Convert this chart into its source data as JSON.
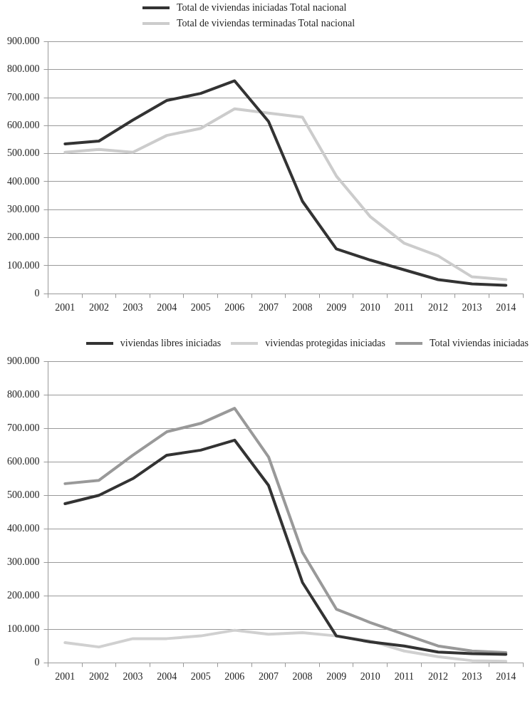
{
  "chart_data": [
    {
      "type": "line",
      "categories": [
        "2001",
        "2002",
        "2003",
        "2004",
        "2005",
        "2006",
        "2007",
        "2008",
        "2009",
        "2010",
        "2011",
        "2012",
        "2013",
        "2014"
      ],
      "series": [
        {
          "name": "Total de viviendas iniciadas Total nacional",
          "color": "#333333",
          "values": [
            535000,
            545000,
            620000,
            690000,
            715000,
            760000,
            615000,
            330000,
            160000,
            120000,
            85000,
            50000,
            35000,
            30000
          ]
        },
        {
          "name": "Total de viviendas terminadas Total nacional",
          "color": "#cccccc",
          "values": [
            505000,
            515000,
            505000,
            565000,
            590000,
            660000,
            645000,
            630000,
            420000,
            275000,
            180000,
            135000,
            60000,
            50000
          ]
        }
      ],
      "ylim": [
        0,
        900000
      ],
      "yticks": [
        {
          "value": 0,
          "label": "0"
        },
        {
          "value": 100000,
          "label": "100.000"
        },
        {
          "value": 200000,
          "label": "200.000"
        },
        {
          "value": 300000,
          "label": "300.000"
        },
        {
          "value": 400000,
          "label": "400.000"
        },
        {
          "value": 500000,
          "label": "500.000"
        },
        {
          "value": 600000,
          "label": "600.000"
        },
        {
          "value": 700000,
          "label": "700.000"
        },
        {
          "value": 800000,
          "label": "800.000"
        },
        {
          "value": 900000,
          "label": "900.000"
        }
      ],
      "grid": "y",
      "legend": "top",
      "marker": "none",
      "line_style": "solid"
    },
    {
      "type": "line",
      "categories": [
        "2001",
        "2002",
        "2003",
        "2004",
        "2005",
        "2006",
        "2007",
        "2008",
        "2009",
        "2010",
        "2011",
        "2012",
        "2013",
        "2014"
      ],
      "series": [
        {
          "name": "viviendas libres iniciadas",
          "color": "#333333",
          "values": [
            475000,
            500000,
            550000,
            620000,
            635000,
            665000,
            530000,
            240000,
            80000,
            62000,
            50000,
            32000,
            27000,
            25000
          ]
        },
        {
          "name": "viviendas protegidas iniciadas",
          "color": "#d0d0d0",
          "values": [
            60000,
            47000,
            72000,
            72000,
            80000,
            97000,
            85000,
            90000,
            80000,
            65000,
            35000,
            18000,
            6000,
            4000
          ]
        },
        {
          "name": "Total viviendas iniciadas",
          "color": "#999999",
          "values": [
            535000,
            545000,
            620000,
            690000,
            715000,
            760000,
            615000,
            330000,
            160000,
            120000,
            85000,
            50000,
            35000,
            30000
          ]
        }
      ],
      "ylim": [
        0,
        900000
      ],
      "yticks": [
        {
          "value": 0,
          "label": "0"
        },
        {
          "value": 100000,
          "label": "100.000"
        },
        {
          "value": 200000,
          "label": "200.000"
        },
        {
          "value": 300000,
          "label": "300.000"
        },
        {
          "value": 400000,
          "label": "400.000"
        },
        {
          "value": 500000,
          "label": "500.000"
        },
        {
          "value": 600000,
          "label": "600.000"
        },
        {
          "value": 700000,
          "label": "700.000"
        },
        {
          "value": 800000,
          "label": "800.000"
        },
        {
          "value": 900000,
          "label": "900.000"
        }
      ],
      "grid": "y",
      "legend": "top",
      "marker": "none",
      "line_style": "solid"
    }
  ]
}
